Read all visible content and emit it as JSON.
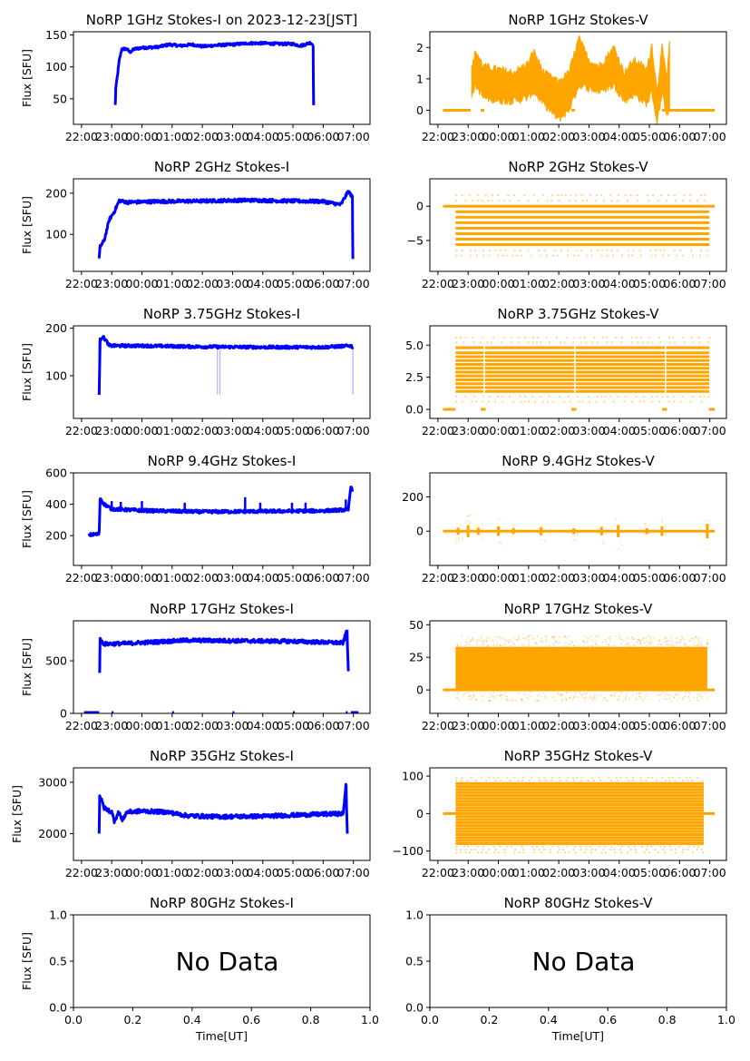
{
  "figure": {
    "date_label": "2023-12-23[JST]",
    "colors": {
      "stokes_i": "#0000ff",
      "stokes_v": "#ffa500",
      "axis": "#000000"
    }
  },
  "chart_data": [
    {
      "type": "scatter",
      "panel": "1GHz-I",
      "title": "NoRP 1GHz Stokes-I on 2023-12-23[JST]",
      "ylabel": "Flux [SFU]",
      "xlabel": "",
      "ylim": [
        10,
        155
      ],
      "yticks": [
        50,
        100,
        150
      ],
      "xlim": [
        "21:44",
        "07:33"
      ],
      "xticks": [
        "22:00",
        "23:00",
        "00:00",
        "01:00",
        "02:00",
        "03:00",
        "04:00",
        "05:00",
        "06:00",
        "07:00"
      ],
      "color": "#0000ff",
      "start": "23:07",
      "end": "05:41",
      "series": [
        {
          "t": "23:07",
          "v": 40
        },
        {
          "t": "23:08",
          "v": 65
        },
        {
          "t": "23:15",
          "v": 110
        },
        {
          "t": "23:20",
          "v": 128
        },
        {
          "t": "23:30",
          "v": 128
        },
        {
          "t": "23:36",
          "v": 123
        },
        {
          "t": "23:45",
          "v": 128
        },
        {
          "t": "00:00",
          "v": 130
        },
        {
          "t": "00:30",
          "v": 131
        },
        {
          "t": "00:55",
          "v": 135
        },
        {
          "t": "01:15",
          "v": 133
        },
        {
          "t": "01:40",
          "v": 135
        },
        {
          "t": "02:00",
          "v": 132
        },
        {
          "t": "02:30",
          "v": 134
        },
        {
          "t": "03:00",
          "v": 135
        },
        {
          "t": "03:30",
          "v": 137
        },
        {
          "t": "04:00",
          "v": 137
        },
        {
          "t": "04:30",
          "v": 136
        },
        {
          "t": "05:00",
          "v": 136
        },
        {
          "t": "05:15",
          "v": 133
        },
        {
          "t": "05:35",
          "v": 138
        },
        {
          "t": "05:40",
          "v": 134
        },
        {
          "t": "05:41",
          "v": 40
        }
      ],
      "spread": 2
    },
    {
      "type": "scatter",
      "panel": "1GHz-V",
      "title": "NoRP 1GHz Stokes-V",
      "ylabel": "",
      "xlabel": "",
      "ylim": [
        -0.45,
        2.5
      ],
      "yticks": [
        0,
        1,
        2
      ],
      "xlim": [
        "21:44",
        "07:33"
      ],
      "xticks": [
        "22:00",
        "23:00",
        "00:00",
        "01:00",
        "02:00",
        "03:00",
        "04:00",
        "05:00",
        "06:00",
        "07:00"
      ],
      "color": "#ffa500",
      "zero_segments": [
        [
          "22:10",
          "23:05"
        ],
        [
          "23:25",
          "23:32"
        ],
        [
          "02:25",
          "02:32"
        ],
        [
          "05:25",
          "07:10"
        ]
      ],
      "series": [
        {
          "t": "23:07",
          "lo": 0.5,
          "hi": 1.3
        },
        {
          "t": "23:15",
          "lo": 0.8,
          "hi": 1.9
        },
        {
          "t": "23:30",
          "lo": 0.4,
          "hi": 1.4
        },
        {
          "t": "00:00",
          "lo": 0.3,
          "hi": 1.3
        },
        {
          "t": "00:30",
          "lo": 0.3,
          "hi": 1.2
        },
        {
          "t": "01:00",
          "lo": 0.4,
          "hi": 1.5
        },
        {
          "t": "01:10",
          "lo": 0.6,
          "hi": 1.9
        },
        {
          "t": "01:30",
          "lo": 0.2,
          "hi": 1.2
        },
        {
          "t": "02:00",
          "lo": -0.3,
          "hi": 0.9
        },
        {
          "t": "02:20",
          "lo": 0.0,
          "hi": 1.2
        },
        {
          "t": "02:40",
          "lo": 0.8,
          "hi": 2.3
        },
        {
          "t": "03:00",
          "lo": 0.7,
          "hi": 1.6
        },
        {
          "t": "03:20",
          "lo": 0.6,
          "hi": 1.4
        },
        {
          "t": "03:50",
          "lo": 0.8,
          "hi": 2.0
        },
        {
          "t": "04:10",
          "lo": 0.3,
          "hi": 1.2
        },
        {
          "t": "04:30",
          "lo": 0.5,
          "hi": 1.6
        },
        {
          "t": "04:55",
          "lo": 0.2,
          "hi": 1.3
        },
        {
          "t": "05:05",
          "lo": 0.6,
          "hi": 2.1
        },
        {
          "t": "05:15",
          "lo": -0.4,
          "hi": 0.6
        },
        {
          "t": "05:25",
          "lo": 0.5,
          "hi": 2.0
        },
        {
          "t": "05:35",
          "lo": -0.1,
          "hi": 1.0
        },
        {
          "t": "05:40",
          "lo": 0.0,
          "hi": 2.2
        }
      ]
    },
    {
      "type": "scatter",
      "panel": "2GHz-I",
      "title": "NoRP 2GHz Stokes-I",
      "ylabel": "Flux [SFU]",
      "xlabel": "",
      "ylim": [
        10,
        235
      ],
      "yticks": [
        100,
        200
      ],
      "xlim": [
        "21:44",
        "07:33"
      ],
      "xticks": [
        "22:00",
        "23:00",
        "00:00",
        "01:00",
        "02:00",
        "03:00",
        "04:00",
        "05:00",
        "06:00",
        "07:00"
      ],
      "color": "#0000ff",
      "series": [
        {
          "t": "22:35",
          "v": 40
        },
        {
          "t": "22:37",
          "v": 70
        },
        {
          "t": "22:45",
          "v": 85
        },
        {
          "t": "22:55",
          "v": 135
        },
        {
          "t": "23:05",
          "v": 155
        },
        {
          "t": "23:15",
          "v": 182
        },
        {
          "t": "23:30",
          "v": 178
        },
        {
          "t": "00:30",
          "v": 180
        },
        {
          "t": "02:00",
          "v": 181
        },
        {
          "t": "03:30",
          "v": 183
        },
        {
          "t": "05:00",
          "v": 181
        },
        {
          "t": "06:00",
          "v": 180
        },
        {
          "t": "06:35",
          "v": 172
        },
        {
          "t": "06:50",
          "v": 205
        },
        {
          "t": "06:58",
          "v": 190
        },
        {
          "t": "06:59",
          "v": 40
        }
      ],
      "spread": 4
    },
    {
      "type": "scatter",
      "panel": "2GHz-V",
      "title": "NoRP 2GHz Stokes-V",
      "ylabel": "",
      "xlabel": "",
      "ylim": [
        -9.5,
        4
      ],
      "yticks": [
        -5,
        0
      ],
      "xlim": [
        "21:44",
        "07:33"
      ],
      "xticks": [
        "22:00",
        "23:00",
        "00:00",
        "01:00",
        "02:00",
        "03:00",
        "04:00",
        "05:00",
        "06:00",
        "07:00"
      ],
      "color": "#ffa500",
      "zero_segments": [
        [
          "22:10",
          "07:10"
        ]
      ],
      "band_range": [
        "22:35",
        "06:59"
      ],
      "levels_dense": [
        -0.8,
        -1.6,
        -2.4,
        -3.2,
        -4.0,
        -4.8,
        -5.6
      ],
      "levels_sparse": [
        0.8,
        1.6,
        -6.4,
        -7.2
      ]
    },
    {
      "type": "scatter",
      "panel": "3.75GHz-I",
      "title": "NoRP 3.75GHz Stokes-I",
      "ylabel": "Flux [SFU]",
      "xlabel": "",
      "ylim": [
        10,
        205
      ],
      "yticks": [
        100,
        200
      ],
      "xlim": [
        "21:44",
        "07:33"
      ],
      "xticks": [
        "22:00",
        "23:00",
        "00:00",
        "01:00",
        "02:00",
        "03:00",
        "04:00",
        "05:00",
        "06:00",
        "07:00"
      ],
      "color": "#0000ff",
      "dropouts": [
        "02:30",
        "02:35",
        "06:59"
      ],
      "series": [
        {
          "t": "22:35",
          "v": 60
        },
        {
          "t": "22:37",
          "v": 175
        },
        {
          "t": "22:42",
          "v": 183
        },
        {
          "t": "22:50",
          "v": 172
        },
        {
          "t": "22:55",
          "v": 163
        },
        {
          "t": "00:00",
          "v": 163
        },
        {
          "t": "02:00",
          "v": 161
        },
        {
          "t": "04:00",
          "v": 160
        },
        {
          "t": "06:00",
          "v": 160
        },
        {
          "t": "06:55",
          "v": 163
        },
        {
          "t": "06:59",
          "v": 160
        }
      ],
      "spread": 3
    },
    {
      "type": "scatter",
      "panel": "3.75GHz-V",
      "title": "NoRP 3.75GHz Stokes-V",
      "ylabel": "",
      "xlabel": "",
      "ylim": [
        -0.7,
        6.5
      ],
      "yticks": [
        0.0,
        2.5,
        5.0
      ],
      "yticklabels": [
        "0.0",
        "2.5",
        "5.0"
      ],
      "xlim": [
        "21:44",
        "07:33"
      ],
      "xticks": [
        "22:00",
        "23:00",
        "00:00",
        "01:00",
        "02:00",
        "03:00",
        "04:00",
        "05:00",
        "06:00",
        "07:00"
      ],
      "color": "#ffa500",
      "zero_segments": [
        [
          "22:10",
          "22:35"
        ],
        [
          "23:25",
          "23:35"
        ],
        [
          "02:25",
          "02:35"
        ],
        [
          "05:25",
          "05:35"
        ],
        [
          "06:58",
          "07:10"
        ]
      ],
      "band_range": [
        "22:35",
        "06:59"
      ],
      "band_gaps": [
        "23:32",
        "02:32",
        "05:32"
      ],
      "levels_dense": [
        1.4,
        1.7,
        2.0,
        2.3,
        2.6,
        2.9,
        3.2,
        3.5,
        3.8,
        4.1,
        4.4,
        4.8
      ],
      "levels_sparse": [
        0.6,
        1.0,
        5.2,
        5.6
      ]
    },
    {
      "type": "scatter",
      "panel": "9.4GHz-I",
      "title": "NoRP 9.4GHz Stokes-I",
      "ylabel": "Flux [SFU]",
      "xlabel": "",
      "ylim": [
        10,
        600
      ],
      "yticks": [
        200,
        400,
        600
      ],
      "xlim": [
        "21:44",
        "07:33"
      ],
      "xticks": [
        "22:00",
        "23:00",
        "00:00",
        "01:00",
        "02:00",
        "03:00",
        "04:00",
        "05:00",
        "06:00",
        "07:00"
      ],
      "color": "#0000ff",
      "spikes": [
        {
          "t": "23:00",
          "v": 420
        },
        {
          "t": "23:18",
          "v": 415
        },
        {
          "t": "00:00",
          "v": 420
        },
        {
          "t": "01:25",
          "v": 410
        },
        {
          "t": "03:25",
          "v": 445
        },
        {
          "t": "03:55",
          "v": 410
        },
        {
          "t": "04:58",
          "v": 410
        },
        {
          "t": "05:25",
          "v": 410
        },
        {
          "t": "06:45",
          "v": 430
        }
      ],
      "series": [
        {
          "t": "22:15",
          "v": 205
        },
        {
          "t": "22:35",
          "v": 210
        },
        {
          "t": "22:37",
          "v": 440
        },
        {
          "t": "22:45",
          "v": 400
        },
        {
          "t": "23:00",
          "v": 370
        },
        {
          "t": "00:00",
          "v": 360
        },
        {
          "t": "02:00",
          "v": 352
        },
        {
          "t": "04:00",
          "v": 355
        },
        {
          "t": "06:00",
          "v": 358
        },
        {
          "t": "06:50",
          "v": 365
        },
        {
          "t": "06:55",
          "v": 520
        },
        {
          "t": "06:58",
          "v": 480
        }
      ],
      "spread": 10
    },
    {
      "type": "scatter",
      "panel": "9.4GHz-V",
      "title": "NoRP 9.4GHz Stokes-V",
      "ylabel": "",
      "xlabel": "",
      "ylim": [
        -200,
        340
      ],
      "yticks": [
        0,
        200
      ],
      "xlim": [
        "21:44",
        "07:33"
      ],
      "xticks": [
        "22:00",
        "23:00",
        "00:00",
        "01:00",
        "02:00",
        "03:00",
        "04:00",
        "05:00",
        "06:00",
        "07:00"
      ],
      "color": "#ffa500",
      "zero_segments": [
        [
          "22:10",
          "07:10"
        ]
      ],
      "bursts": [
        {
          "t": "22:40",
          "a": 60
        },
        {
          "t": "23:00",
          "a": 100
        },
        {
          "t": "23:20",
          "a": 60
        },
        {
          "t": "00:00",
          "a": 80
        },
        {
          "t": "00:30",
          "a": 50
        },
        {
          "t": "01:25",
          "a": 70
        },
        {
          "t": "02:30",
          "a": 50
        },
        {
          "t": "03:25",
          "a": 70
        },
        {
          "t": "03:58",
          "a": 100
        },
        {
          "t": "04:55",
          "a": 50
        },
        {
          "t": "05:25",
          "a": 80
        },
        {
          "t": "06:55",
          "a": 120
        }
      ]
    },
    {
      "type": "scatter",
      "panel": "17GHz-I",
      "title": "NoRP 17GHz Stokes-I",
      "ylabel": "Flux [SFU]",
      "xlabel": "",
      "ylim": [
        0,
        880
      ],
      "yticks": [
        0,
        500
      ],
      "xlim": [
        "21:44",
        "07:33"
      ],
      "xticks": [
        "22:00",
        "23:00",
        "00:00",
        "01:00",
        "02:00",
        "03:00",
        "04:00",
        "05:00",
        "06:00",
        "07:00"
      ],
      "color": "#0000ff",
      "zero_marks": [
        [
          "22:05",
          "22:35"
        ],
        [
          "23:00",
          "23:02"
        ],
        [
          "01:00",
          "01:02"
        ],
        [
          "03:00",
          "03:02"
        ],
        [
          "05:00",
          "05:02"
        ],
        [
          "06:45",
          "06:47"
        ],
        [
          "06:55",
          "07:10"
        ]
      ],
      "series": [
        {
          "t": "22:36",
          "v": 400
        },
        {
          "t": "22:37",
          "v": 700
        },
        {
          "t": "22:45",
          "v": 660
        },
        {
          "t": "23:30",
          "v": 665
        },
        {
          "t": "00:30",
          "v": 680
        },
        {
          "t": "01:30",
          "v": 695
        },
        {
          "t": "03:00",
          "v": 690
        },
        {
          "t": "05:00",
          "v": 685
        },
        {
          "t": "06:40",
          "v": 670
        },
        {
          "t": "06:47",
          "v": 800
        },
        {
          "t": "06:50",
          "v": 400
        }
      ],
      "spread": 18
    },
    {
      "type": "scatter",
      "panel": "17GHz-V",
      "title": "NoRP 17GHz Stokes-V",
      "ylabel": "",
      "xlabel": "",
      "ylim": [
        -18,
        53
      ],
      "yticks": [
        0,
        25,
        50
      ],
      "xlim": [
        "21:44",
        "07:33"
      ],
      "xticks": [
        "22:00",
        "23:00",
        "00:00",
        "01:00",
        "02:00",
        "03:00",
        "04:00",
        "05:00",
        "06:00",
        "07:00"
      ],
      "color": "#ffa500",
      "zero_segments": [
        [
          "22:10",
          "22:35"
        ],
        [
          "06:55",
          "07:10"
        ]
      ],
      "band_range": [
        "22:35",
        "06:55"
      ],
      "band": [
        -1,
        33
      ],
      "scatter_band": [
        -8,
        42
      ]
    },
    {
      "type": "scatter",
      "panel": "35GHz-I",
      "title": "NoRP 35GHz Stokes-I",
      "ylabel": "Flux [SFU]",
      "xlabel": "",
      "ylim": [
        1480,
        3280
      ],
      "yticks": [
        2000,
        3000
      ],
      "xlim": [
        "21:44",
        "07:33"
      ],
      "xticks": [
        "22:00",
        "23:00",
        "00:00",
        "01:00",
        "02:00",
        "03:00",
        "04:00",
        "05:00",
        "06:00",
        "07:00"
      ],
      "color": "#0000ff",
      "series": [
        {
          "t": "22:35",
          "v": 2000
        },
        {
          "t": "22:36",
          "v": 2750
        },
        {
          "t": "22:45",
          "v": 2500
        },
        {
          "t": "23:00",
          "v": 2420
        },
        {
          "t": "23:05",
          "v": 2250
        },
        {
          "t": "23:15",
          "v": 2430
        },
        {
          "t": "23:20",
          "v": 2250
        },
        {
          "t": "23:30",
          "v": 2420
        },
        {
          "t": "00:00",
          "v": 2440
        },
        {
          "t": "00:50",
          "v": 2420
        },
        {
          "t": "01:30",
          "v": 2350
        },
        {
          "t": "02:30",
          "v": 2330
        },
        {
          "t": "04:00",
          "v": 2340
        },
        {
          "t": "05:00",
          "v": 2360
        },
        {
          "t": "06:00",
          "v": 2380
        },
        {
          "t": "06:40",
          "v": 2390
        },
        {
          "t": "06:45",
          "v": 2950
        },
        {
          "t": "06:48",
          "v": 2000
        }
      ],
      "spread": 40
    },
    {
      "type": "scatter",
      "panel": "35GHz-V",
      "title": "NoRP 35GHz Stokes-V",
      "ylabel": "",
      "xlabel": "",
      "ylim": [
        -125,
        122
      ],
      "yticks": [
        -100,
        0,
        100
      ],
      "xlim": [
        "21:44",
        "07:33"
      ],
      "xticks": [
        "22:00",
        "23:00",
        "00:00",
        "01:00",
        "02:00",
        "03:00",
        "04:00",
        "05:00",
        "06:00",
        "07:00"
      ],
      "color": "#ffa500",
      "zero_segments": [
        [
          "22:10",
          "07:10"
        ]
      ],
      "band_range": [
        "22:35",
        "06:48"
      ],
      "levels_dense": [
        -80,
        -72,
        -64,
        -56,
        -48,
        -40,
        -32,
        -24,
        -16,
        -8,
        8,
        16,
        24,
        32,
        40,
        48,
        56,
        64,
        72,
        80
      ],
      "levels_sparse": [
        88,
        96,
        -88,
        -96,
        -104
      ]
    },
    {
      "type": "empty",
      "panel": "80GHz-I",
      "title": "NoRP 80GHz Stokes-I",
      "ylabel": "Flux [SFU]",
      "xlabel": "Time[UT]",
      "annotation": "No Data",
      "xlim": [
        0,
        1
      ],
      "ylim": [
        0,
        1
      ],
      "xticks": [
        "0.0",
        "0.2",
        "0.4",
        "0.6",
        "0.8",
        "1.0"
      ],
      "yticks": [
        "0.0",
        "0.5",
        "1.0"
      ]
    },
    {
      "type": "empty",
      "panel": "80GHz-V",
      "title": "NoRP 80GHz Stokes-V",
      "ylabel": "",
      "xlabel": "Time[UT]",
      "annotation": "No Data",
      "xlim": [
        0,
        1
      ],
      "ylim": [
        0,
        1
      ],
      "xticks": [
        "0.0",
        "0.2",
        "0.4",
        "0.6",
        "0.8",
        "1.0"
      ],
      "yticks": [
        "0.0",
        "0.5",
        "1.0"
      ]
    }
  ]
}
